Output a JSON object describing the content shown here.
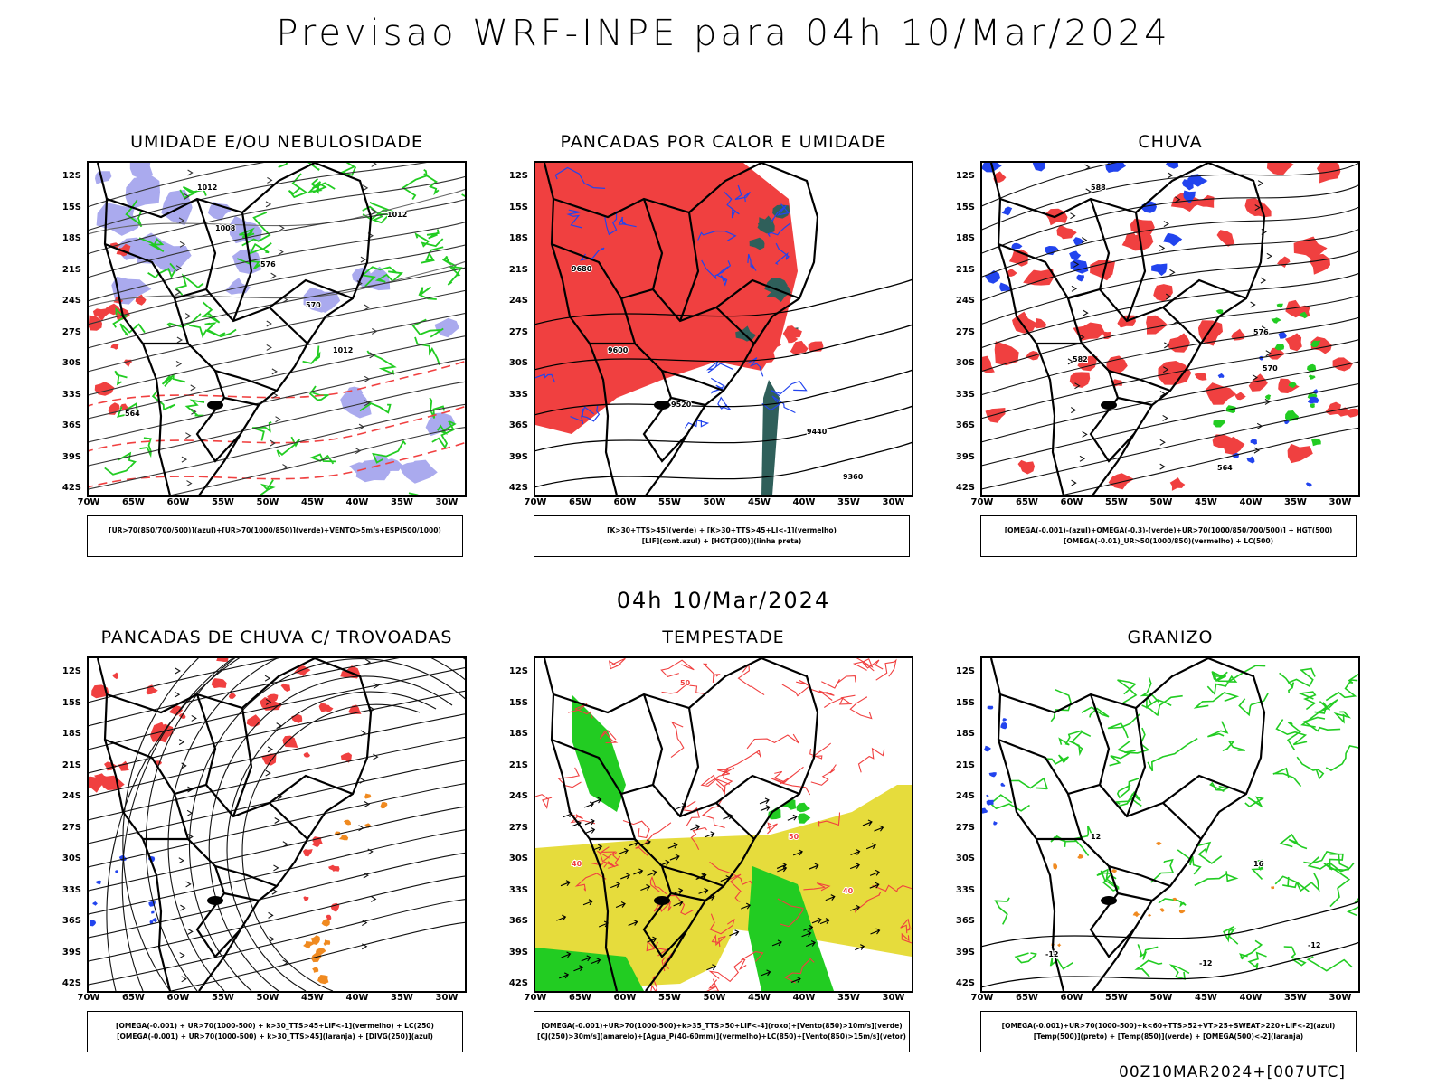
{
  "title": "Previsao WRF-INPE  para 04h 10/Mar/2024",
  "mid_title": "04h 10/Mar/2024",
  "footer": "00Z10MAR2024+[007UTC]",
  "lat_labels": [
    "12S",
    "15S",
    "18S",
    "21S",
    "24S",
    "27S",
    "30S",
    "33S",
    "36S",
    "39S",
    "42S"
  ],
  "lon_labels": [
    "70W",
    "65W",
    "60W",
    "55W",
    "50W",
    "45W",
    "40W",
    "35W",
    "30W"
  ],
  "panels": [
    {
      "title": "UMIDADE E/OU NEBULOSIDADE",
      "legend": [
        "[UR>70(850/700/500)](azul)+[UR>70(1000/850)](verde)+VENTO>5m/s+ESP(500/1000)"
      ],
      "contour_labels": [
        "1012",
        "1008",
        "576",
        "570",
        "564",
        "1012",
        "1012"
      ]
    },
    {
      "title": "PANCADAS POR CALOR E UMIDADE",
      "legend": [
        "[K>30+TTS>45](verde) + [K>30+TTS>45+LI<-1](vermelho)",
        "[LIF](cont.azul) + [HGT(300)](linha preta)"
      ],
      "contour_labels": [
        "9680",
        "9600",
        "9520",
        "9440",
        "9360"
      ]
    },
    {
      "title": "CHUVA",
      "legend": [
        "[OMEGA(-0.001)-(azul)+OMEGA(-0.3)-(verde)+UR>70(1000/850/700/500)] + HGT(500)",
        "[OMEGA(-0.01)_UR>50(1000/850)(vermelho) + LC(500)"
      ],
      "contour_labels": [
        "588",
        "582",
        "576",
        "570",
        "564"
      ]
    },
    {
      "title": "PANCADAS DE CHUVA C/ TROVOADAS",
      "legend": [
        "[OMEGA(-0.001) + UR>70(1000-500) + k>30_TTS>45+LIF<-1](vermelho) + LC(250)",
        "[OMEGA(-0.001) + UR>70(1000-500) + k>30_TTS>45](laranja) + [DIVG(250)](azul)"
      ],
      "contour_labels": []
    },
    {
      "title": "TEMPESTADE",
      "legend": [
        "[OMEGA(-0.001)+UR>70(1000-500)+k>35_TTS>50+LIF<-4](roxo)+[Vento(850)>10m/s](verde)",
        "[CJ(250)>30m/s](amarelo)+[Agua_P(40-60mm)](vermelho)+LC(850)+[Vento(850)>15m/s](vetor)"
      ],
      "contour_labels": [
        "50",
        "40",
        "50",
        "40"
      ]
    },
    {
      "title": "GRANIZO",
      "legend": [
        "[OMEGA(-0.001)+UR>70(1000-500)+k<60+TTS>52+VT>25+SWEAT>220+LIF<-2](azul)",
        "[Temp(500)](preto) + [Temp(850)](verde) + [OMEGA(500)<-2](laranja)"
      ],
      "contour_labels": [
        "-12",
        "-12",
        "12",
        "16",
        "-12"
      ]
    }
  ],
  "colors": {
    "red": "#f04040",
    "green": "#22cc22",
    "blue": "#2244ee",
    "lavender": "#aaaaee",
    "teal": "#2f5f5a",
    "yellow": "#e6dc3c",
    "orange": "#f08a20"
  }
}
